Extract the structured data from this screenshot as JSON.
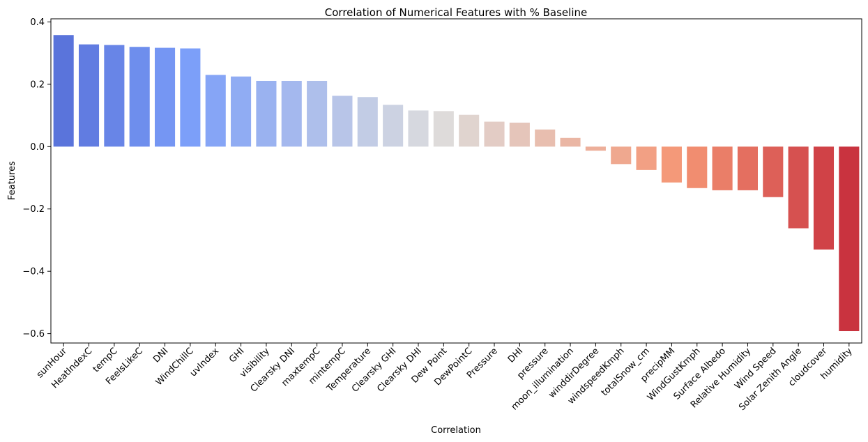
{
  "chart_data": {
    "type": "bar",
    "title": "Correlation of Numerical Features with % Baseline",
    "xlabel": "Correlation",
    "ylabel": "Features",
    "ylim": [
      -0.63,
      0.41
    ],
    "yticks": [
      0.4,
      0.2,
      0.0,
      -0.2,
      -0.4,
      -0.6
    ],
    "ytick_labels": [
      "0.4",
      "0.2",
      "0.0",
      "−0.2",
      "−0.4",
      "−0.6"
    ],
    "grid": false,
    "palette": "coolwarm",
    "categories": [
      "sunHour",
      "HeatIndexC",
      "tempC",
      "FeelsLikeC",
      "DNI",
      "WindChillC",
      "uvIndex",
      "GHI",
      "visibility",
      "Clearsky DNI",
      "maxtempC",
      "mintempC",
      "Temperature",
      "Clearsky GHI",
      "Clearsky DHI",
      "Dew Point",
      "DewPointC",
      "Pressure",
      "DHI",
      "pressure",
      "moon_illumination",
      "winddirDegree",
      "windspeedKmph",
      "totalSnow_cm",
      "precipMM",
      "WindGustKmph",
      "Surface Albedo",
      "Relative Humidity",
      "Wind Speed",
      "Solar Zenith Angle",
      "cloudcover",
      "humidity"
    ],
    "values": [
      0.358,
      0.328,
      0.326,
      0.32,
      0.317,
      0.315,
      0.23,
      0.225,
      0.211,
      0.211,
      0.211,
      0.163,
      0.159,
      0.134,
      0.116,
      0.114,
      0.102,
      0.08,
      0.077,
      0.055,
      0.028,
      -0.013,
      -0.056,
      -0.075,
      -0.115,
      -0.133,
      -0.14,
      -0.14,
      -0.162,
      -0.262,
      -0.33,
      -0.592
    ]
  }
}
